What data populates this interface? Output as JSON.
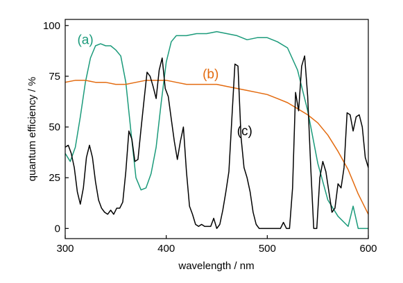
{
  "chart_data": {
    "type": "line",
    "xlabel": "wavelength / nm",
    "ylabel": "quantum efficiency / %",
    "xlim": [
      300,
      600
    ],
    "ylim": [
      -5,
      103
    ],
    "xticks": [
      300,
      400,
      500,
      600
    ],
    "yticks": [
      0,
      25,
      50,
      75,
      100
    ],
    "grid": false,
    "series": [
      {
        "name": "(a)",
        "color": "#1a9a7a",
        "label_pos": [
          312,
          93
        ],
        "x": [
          300,
          305,
          310,
          315,
          320,
          325,
          330,
          335,
          340,
          345,
          350,
          355,
          360,
          365,
          370,
          375,
          380,
          385,
          390,
          395,
          400,
          405,
          410,
          420,
          430,
          440,
          450,
          460,
          470,
          480,
          490,
          500,
          510,
          520,
          530,
          540,
          550,
          560,
          570,
          580,
          585,
          590,
          595,
          600
        ],
        "y": [
          37,
          33,
          40,
          55,
          72,
          84,
          90,
          91,
          90,
          90,
          88,
          85,
          72,
          48,
          25,
          19,
          20,
          27,
          40,
          62,
          82,
          92,
          95,
          95,
          96,
          96,
          97,
          96,
          95,
          93,
          94,
          94,
          92,
          89,
          78,
          58,
          32,
          14,
          6,
          1,
          11,
          0,
          0,
          0
        ]
      },
      {
        "name": "(b)",
        "color": "#e36a0e",
        "label_pos": [
          436,
          76
        ],
        "x": [
          300,
          310,
          320,
          330,
          340,
          350,
          360,
          370,
          380,
          390,
          400,
          410,
          420,
          430,
          440,
          450,
          460,
          470,
          480,
          490,
          500,
          510,
          520,
          530,
          540,
          550,
          560,
          570,
          580,
          590,
          600
        ],
        "y": [
          72,
          73,
          73,
          72,
          72,
          71,
          71,
          72,
          73,
          73,
          73,
          72,
          71,
          71,
          71,
          71,
          70,
          69,
          68,
          67,
          66,
          64,
          62,
          59,
          56,
          52,
          46,
          38,
          29,
          17,
          7
        ]
      },
      {
        "name": "(c)",
        "color": "#000000",
        "label_pos": [
          470,
          48
        ],
        "x": [
          300,
          303,
          306,
          309,
          312,
          315,
          318,
          321,
          324,
          327,
          330,
          333,
          336,
          339,
          342,
          345,
          348,
          351,
          354,
          357,
          360,
          363,
          366,
          369,
          372,
          375,
          378,
          381,
          384,
          387,
          390,
          393,
          396,
          399,
          402,
          405,
          408,
          411,
          414,
          417,
          420,
          423,
          426,
          429,
          432,
          435,
          438,
          441,
          444,
          447,
          450,
          453,
          456,
          459,
          462,
          465,
          468,
          471,
          474,
          477,
          480,
          483,
          486,
          489,
          492,
          495,
          498,
          501,
          504,
          507,
          510,
          513,
          516,
          519,
          522,
          525,
          528,
          531,
          534,
          537,
          540,
          543,
          546,
          549,
          552,
          555,
          558,
          561,
          564,
          567,
          570,
          573,
          576,
          579,
          582,
          585,
          588,
          591,
          594,
          597,
          600
        ],
        "y": [
          40,
          41,
          37,
          30,
          18,
          12,
          20,
          35,
          41,
          35,
          23,
          14,
          10,
          8,
          7,
          9,
          7,
          10,
          10,
          13,
          28,
          48,
          44,
          33,
          34,
          49,
          63,
          77,
          75,
          70,
          64,
          78,
          84,
          69,
          65,
          54,
          43,
          34,
          43,
          50,
          28,
          11,
          7,
          2,
          1,
          2,
          1,
          1,
          1,
          5,
          0,
          2,
          9,
          18,
          28,
          55,
          81,
          80,
          45,
          30,
          25,
          18,
          8,
          2,
          0,
          0,
          0,
          0,
          0,
          0,
          0,
          0,
          3,
          0,
          0,
          20,
          67,
          58,
          80,
          85,
          65,
          30,
          0,
          0,
          25,
          33,
          28,
          18,
          8,
          10,
          22,
          20,
          30,
          57,
          56,
          48,
          55,
          56,
          50,
          35,
          30
        ]
      }
    ]
  }
}
